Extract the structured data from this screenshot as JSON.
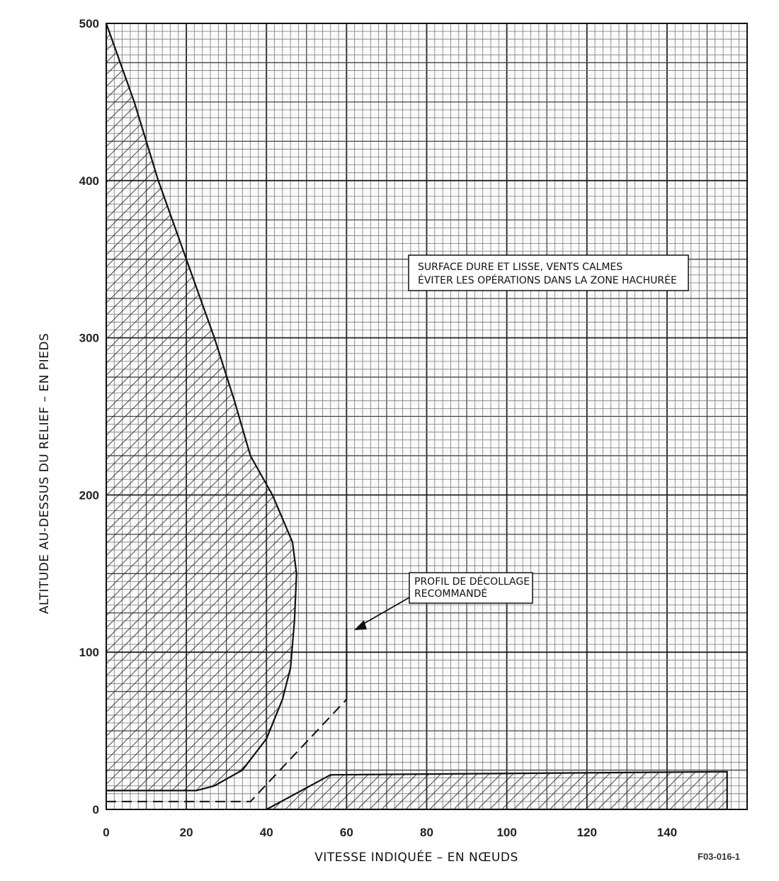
{
  "chart_data": {
    "type": "area",
    "xlabel": "VITESSE INDIQUÉE – EN NŒUDS",
    "ylabel": "ALTITUDE AU-DESSUS DU RELIEF – EN PIEDS",
    "xlim": [
      0,
      160
    ],
    "ylim": [
      0,
      500
    ],
    "x_ticks": [
      "0",
      "20",
      "40",
      "60",
      "80",
      "100",
      "120",
      "140"
    ],
    "x_tick_values": [
      0,
      20,
      40,
      60,
      80,
      100,
      120,
      140
    ],
    "y_ticks": [
      "0",
      "100",
      "200",
      "300",
      "400",
      "500"
    ],
    "y_tick_values": [
      0,
      100,
      200,
      300,
      400,
      500
    ],
    "grid": true,
    "annotation_box": [
      "SURFACE DURE ET LISSE, VENTS CALMES",
      "ÉVITER LES OPÉRATIONS DANS LA ZONE HACHURÉE"
    ],
    "profile_label": [
      "PROFIL DE DÉCOLLAGE",
      "RECOMMANDÉ"
    ],
    "figure_id": "F03-016-1",
    "upper_avoid_zone": [
      [
        0,
        500
      ],
      [
        7,
        450
      ],
      [
        13,
        400
      ],
      [
        20,
        350
      ],
      [
        27,
        300
      ],
      [
        32,
        260
      ],
      [
        36,
        225
      ],
      [
        41.5,
        200
      ],
      [
        44,
        185
      ],
      [
        46.5,
        170
      ],
      [
        47.5,
        150
      ],
      [
        47,
        120
      ],
      [
        46,
        90
      ],
      [
        44,
        70
      ],
      [
        40,
        45
      ],
      [
        34,
        25
      ],
      [
        27,
        15
      ],
      [
        22.5,
        12
      ],
      [
        0,
        12
      ]
    ],
    "lower_avoid_zone": [
      [
        40,
        0
      ],
      [
        56,
        22
      ],
      [
        155,
        24
      ],
      [
        155,
        0
      ]
    ],
    "takeoff_profile": [
      [
        0,
        5
      ],
      [
        36,
        5
      ],
      [
        60,
        70
      ],
      [
        60,
        115
      ]
    ]
  }
}
